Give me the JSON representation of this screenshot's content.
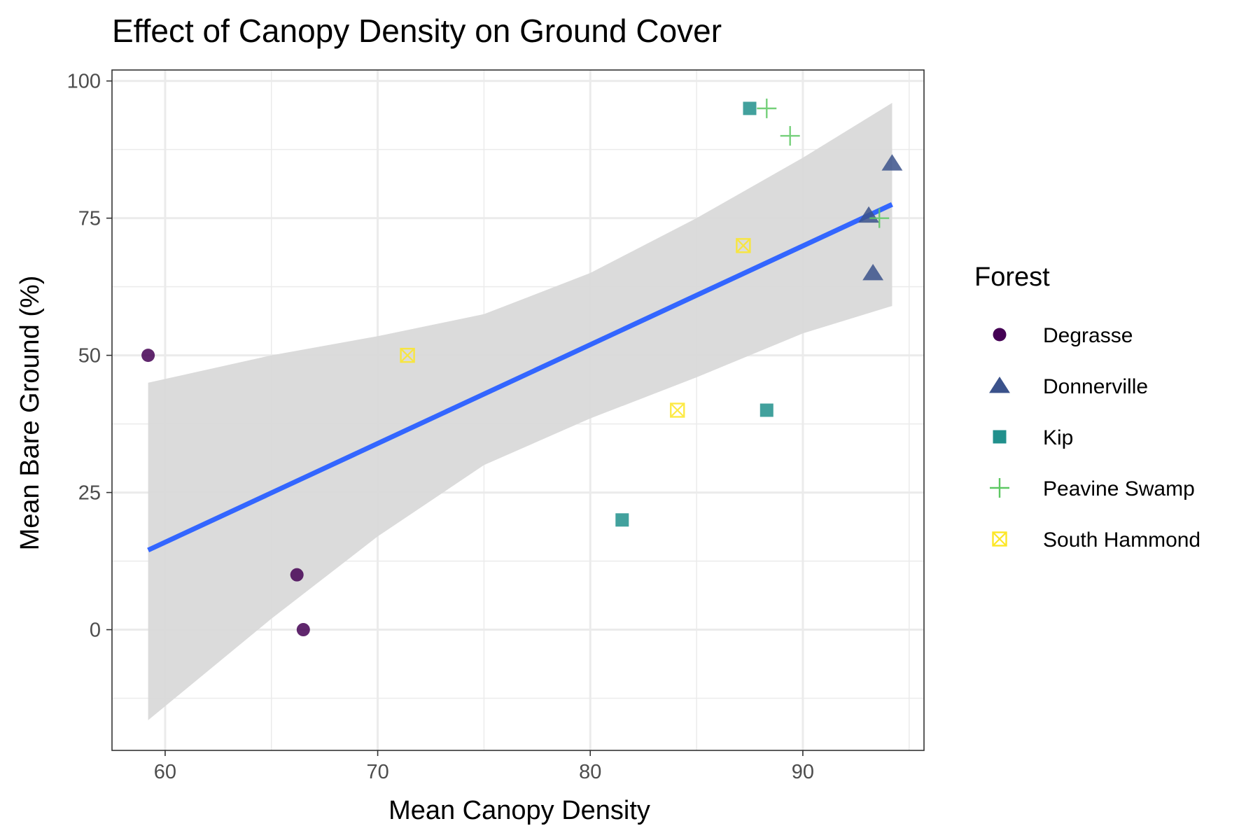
{
  "chart_data": {
    "type": "scatter",
    "title": "Effect of Canopy Density on Ground Cover",
    "xlabel": "Mean Canopy Density",
    "ylabel": "Mean Bare Ground (%)",
    "xlim": [
      57.5,
      95.7
    ],
    "ylim": [
      -22,
      102
    ],
    "x_ticks": [
      60,
      70,
      80,
      90
    ],
    "x_tick_labels": [
      "60",
      "70",
      "80",
      "90"
    ],
    "x_minor_ticks": [
      65,
      75,
      85,
      95
    ],
    "y_ticks": [
      0,
      25,
      50,
      75,
      100
    ],
    "y_tick_labels": [
      "0",
      "25",
      "50",
      "75",
      "100"
    ],
    "y_minor_ticks": [
      -12.5,
      12.5,
      37.5,
      62.5,
      87.5
    ],
    "grid": true,
    "legend": {
      "title": "Forest",
      "position": "right"
    },
    "series": [
      {
        "name": "Degrasse",
        "shape": "circle",
        "color": "#440154",
        "points": [
          [
            59.2,
            50
          ],
          [
            66.2,
            10
          ],
          [
            66.5,
            0
          ]
        ]
      },
      {
        "name": "Donnerville",
        "shape": "triangle",
        "color": "#3B528B",
        "points": [
          [
            94.2,
            85
          ],
          [
            93.1,
            75.5
          ],
          [
            93.3,
            65
          ]
        ]
      },
      {
        "name": "Kip",
        "shape": "square",
        "color": "#21908C",
        "points": [
          [
            87.5,
            95
          ],
          [
            88.3,
            40
          ],
          [
            81.5,
            20
          ]
        ]
      },
      {
        "name": "Peavine Swamp",
        "shape": "plus",
        "color": "#5DC863",
        "points": [
          [
            88.3,
            95
          ],
          [
            89.4,
            90
          ],
          [
            93.6,
            75
          ]
        ]
      },
      {
        "name": "South Hammond",
        "shape": "square-cross",
        "color": "#FDE725",
        "points": [
          [
            71.4,
            50
          ],
          [
            87.2,
            70
          ],
          [
            84.1,
            40
          ]
        ]
      }
    ],
    "trend": {
      "method": "lm",
      "color": "#3366FF",
      "line": [
        [
          59.2,
          14.5
        ],
        [
          94.2,
          77.5
        ]
      ],
      "band_color": "#D9D9D9",
      "band": [
        {
          "x": 59.2,
          "lo": -16.5,
          "hi": 45
        },
        {
          "x": 65,
          "lo": 2,
          "hi": 50
        },
        {
          "x": 70,
          "lo": 17,
          "hi": 53.5
        },
        {
          "x": 75,
          "lo": 30,
          "hi": 57.5
        },
        {
          "x": 80,
          "lo": 38.5,
          "hi": 65
        },
        {
          "x": 85,
          "lo": 46,
          "hi": 75
        },
        {
          "x": 90,
          "lo": 54,
          "hi": 86
        },
        {
          "x": 94.2,
          "lo": 59,
          "hi": 96
        }
      ]
    }
  }
}
